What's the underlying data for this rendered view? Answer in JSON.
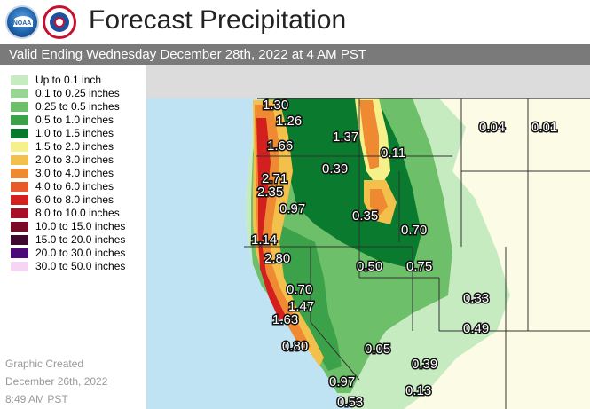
{
  "header": {
    "title": "Forecast Precipitation",
    "valid": "Valid Ending Wednesday December 28th, 2022 at 4 AM PST",
    "logos": [
      "noaa-logo",
      "nws-logo"
    ]
  },
  "legend": [
    {
      "label": "Up to 0.1 inch",
      "color": "#c6ebc1"
    },
    {
      "label": "0.1 to 0.25 inches",
      "color": "#9bd596"
    },
    {
      "label": "0.25 to 0.5 inches",
      "color": "#6dbf6a"
    },
    {
      "label": "0.5 to 1.0 inches",
      "color": "#3ca24a"
    },
    {
      "label": "1.0 to 1.5 inches",
      "color": "#0a7a2e"
    },
    {
      "label": "1.5 to 2.0 inches",
      "color": "#f5f08a"
    },
    {
      "label": "2.0 to 3.0 inches",
      "color": "#f4c04c"
    },
    {
      "label": "3.0 to 4.0 inches",
      "color": "#f08a32"
    },
    {
      "label": "4.0 to 6.0 inches",
      "color": "#e85a2a"
    },
    {
      "label": "6.0 to 8.0 inches",
      "color": "#d41f1f"
    },
    {
      "label": "8.0 to 10.0 inches",
      "color": "#a8102a"
    },
    {
      "label": "10.0 to 15.0 inches",
      "color": "#7a0a28"
    },
    {
      "label": "15.0 to 20.0 inches",
      "color": "#3e0830"
    },
    {
      "label": "20.0 to 30.0 inches",
      "color": "#4a0a78"
    },
    {
      "label": "30.0 to 50.0 inches",
      "color": "#f6d4f4"
    }
  ],
  "created": {
    "line1": "Graphic Created",
    "line2": "December 26th, 2022",
    "line3": "8:49 AM PST"
  },
  "map": {
    "colors": {
      "ocean": "#bfe3f3",
      "canada": "#dcdcdc",
      "land": "#fcfbe6",
      "border": "#333333"
    },
    "values": [
      "1.30",
      "1.26",
      "1.66",
      "1.37",
      "0.04",
      "0.01",
      "0.11",
      "0.39",
      "2.71",
      "2.35",
      "0.97",
      "0.35",
      "0.70",
      "1.14",
      "2.80",
      "0.50",
      "0.75",
      "0.70",
      "0.33",
      "1.47",
      "1.63",
      "0.49",
      "0.80",
      "0.05",
      "0.39",
      "0.97",
      "0.13",
      "0.53"
    ]
  }
}
